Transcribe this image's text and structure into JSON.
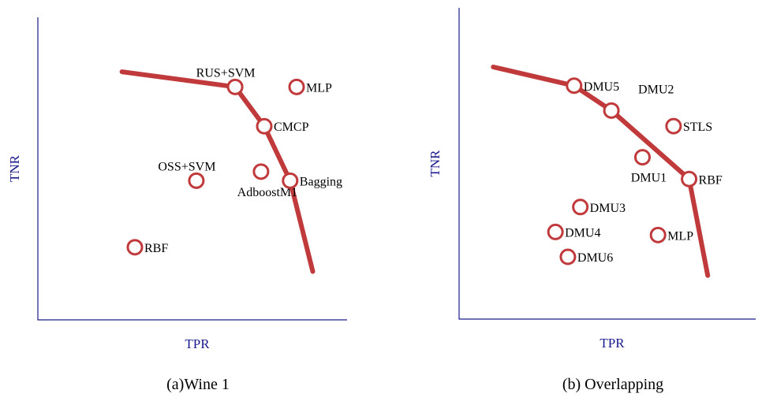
{
  "chart_data": [
    {
      "type": "scatter",
      "caption": "(a)Wine 1",
      "xlabel": "TPR",
      "ylabel": "TNR",
      "xlim": [
        0,
        100
      ],
      "ylim": [
        0,
        100
      ],
      "frontier": {
        "x": [
          26,
          61,
          70,
          78,
          85
        ],
        "y": [
          82,
          77,
          64,
          46,
          16
        ]
      },
      "points": [
        {
          "label": "RUS+SVM",
          "x": 61,
          "y": 77,
          "label_pos": "above"
        },
        {
          "label": "MLP",
          "x": 80,
          "y": 77,
          "label_pos": "right"
        },
        {
          "label": "CMCP",
          "x": 70,
          "y": 64,
          "label_pos": "right"
        },
        {
          "label": "OSS+SVM",
          "x": 49,
          "y": 46,
          "label_pos": "above"
        },
        {
          "label": "AdboostM1",
          "x": 69,
          "y": 49,
          "label_pos": "below"
        },
        {
          "label": "Bagging",
          "x": 78,
          "y": 46,
          "label_pos": "right"
        },
        {
          "label": "RBF",
          "x": 30,
          "y": 24,
          "label_pos": "right"
        }
      ]
    },
    {
      "type": "scatter",
      "caption": "(b) Overlapping",
      "xlabel": "TPR",
      "ylabel": "TNR",
      "xlim": [
        0,
        100
      ],
      "ylim": [
        0,
        100
      ],
      "frontier": {
        "x": [
          11,
          37,
          49,
          74,
          80
        ],
        "y": [
          81,
          75,
          67,
          45,
          14
        ]
      },
      "points": [
        {
          "label": "DMU5",
          "x": 37,
          "y": 75,
          "label_pos": "right"
        },
        {
          "label": "DMU2",
          "x": 49,
          "y": 67,
          "label_pos": "above-right"
        },
        {
          "label": "STLS",
          "x": 69,
          "y": 62,
          "label_pos": "right"
        },
        {
          "label": "DMU1",
          "x": 59,
          "y": 52,
          "label_pos": "below"
        },
        {
          "label": "RBF",
          "x": 74,
          "y": 45,
          "label_pos": "right"
        },
        {
          "label": "DMU3",
          "x": 39,
          "y": 36,
          "label_pos": "right"
        },
        {
          "label": "DMU4",
          "x": 31,
          "y": 28,
          "label_pos": "right"
        },
        {
          "label": "MLP",
          "x": 64,
          "y": 27,
          "label_pos": "right"
        },
        {
          "label": "DMU6",
          "x": 35,
          "y": 20,
          "label_pos": "right"
        }
      ]
    }
  ]
}
